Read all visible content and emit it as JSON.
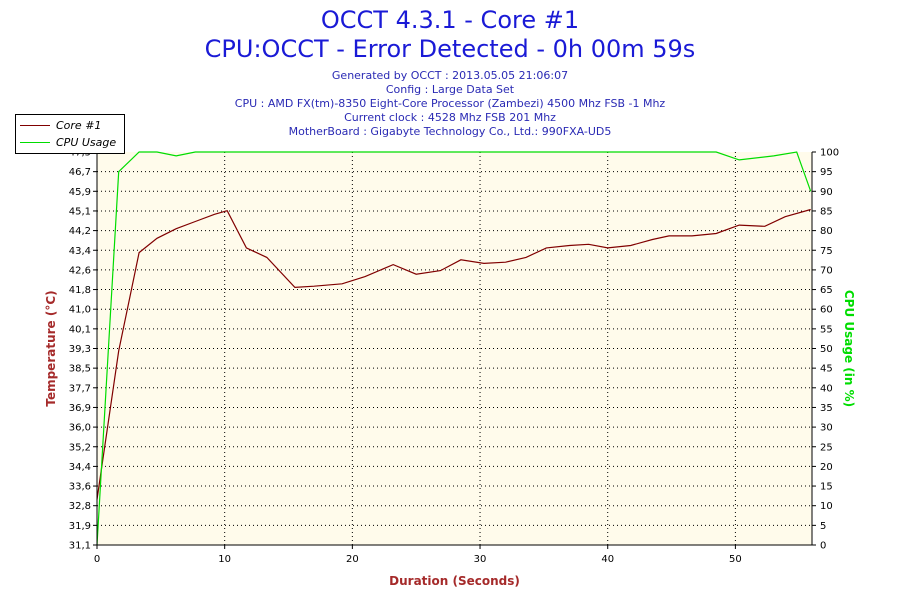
{
  "header": {
    "title": "OCCT 4.3.1 - Core #1",
    "subtitle": "CPU:OCCT - Error Detected - 0h 00m 59s",
    "generated": "Generated by OCCT : 2013.05.05 21:06:07",
    "config": "Config : Large Data Set",
    "cpu": "CPU : AMD FX(tm)-8350 Eight-Core Processor (Zambezi) 4500 Mhz FSB -1 Mhz",
    "clock": "Current clock : 4528 Mhz FSB 201 Mhz",
    "motherboard": "MotherBoard : Gigabyte Technology Co., Ltd.: 990FXA-UD5"
  },
  "colors": {
    "plot_bg": "#FFFBEB",
    "temperature": "#800000",
    "cpu_usage": "#00DD00",
    "left_axis_title": "#A52A2A",
    "right_axis_title": "#00DD00",
    "x_axis_title": "#A52A2A"
  },
  "chart_data": {
    "type": "line",
    "xlabel": "Duration (Seconds)",
    "ylabel": "Temperature (°C)",
    "y2label": "CPU Usage (in %)",
    "xlim": [
      0,
      56
    ],
    "ylim": [
      31.1,
      47.5
    ],
    "y2lim": [
      0,
      100
    ],
    "x_ticks": [
      "0",
      "10",
      "20",
      "30",
      "40",
      "50"
    ],
    "x_tick_values": [
      0,
      10,
      20,
      30,
      40,
      50
    ],
    "y_ticks": [
      "31,1",
      "31,9",
      "32,8",
      "33,6",
      "34,4",
      "35,2",
      "36,0",
      "36,9",
      "37,7",
      "38,5",
      "39,3",
      "40,1",
      "41,0",
      "41,8",
      "42,6",
      "43,4",
      "44,2",
      "45,1",
      "45,9",
      "46,7",
      "47,5"
    ],
    "y2_ticks": [
      "0",
      "5",
      "10",
      "15",
      "20",
      "25",
      "30",
      "35",
      "40",
      "45",
      "50",
      "55",
      "60",
      "65",
      "70",
      "75",
      "80",
      "85",
      "90",
      "95",
      "100"
    ],
    "grid": true,
    "legend": "top-left",
    "series": [
      {
        "name": "Core #1",
        "axis": "left",
        "x": [
          0,
          1.7,
          3.3,
          4.7,
          6.2,
          7.7,
          9.2,
          10.2,
          11.7,
          13.3,
          15.5,
          17.0,
          19.2,
          21.0,
          23.2,
          25.0,
          26.9,
          28.5,
          30.3,
          32.0,
          33.6,
          35.2,
          37.0,
          38.5,
          40.0,
          41.8,
          43.5,
          44.8,
          46.6,
          48.5,
          50.3,
          52.3,
          53.9,
          55.9
        ],
        "y": [
          33.0,
          39.2,
          43.3,
          43.9,
          44.3,
          44.6,
          44.9,
          45.05,
          43.5,
          43.1,
          41.85,
          41.9,
          42.0,
          42.3,
          42.8,
          42.4,
          42.55,
          43.0,
          42.85,
          42.9,
          43.1,
          43.5,
          43.6,
          43.65,
          43.5,
          43.6,
          43.85,
          44.0,
          44.0,
          44.1,
          44.45,
          44.4,
          44.8,
          45.1
        ]
      },
      {
        "name": "CPU Usage",
        "axis": "right",
        "x": [
          0,
          1.7,
          3.3,
          4.7,
          6.2,
          7.7,
          10.2,
          13.3,
          17.0,
          20.0,
          25.0,
          30.0,
          35.0,
          40.0,
          45.0,
          48.5,
          50.3,
          53.0,
          54.8,
          55.9
        ],
        "y": [
          0,
          95,
          100,
          100,
          99,
          100,
          100,
          100,
          100,
          100,
          100,
          100,
          100,
          100,
          100,
          100,
          98,
          99,
          100,
          90
        ]
      }
    ]
  }
}
